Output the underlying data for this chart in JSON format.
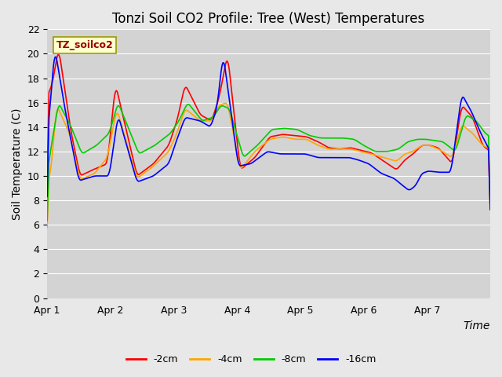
{
  "title": "Tonzi Soil CO2 Profile: Tree (West) Temperatures",
  "xlabel": "Time",
  "ylabel": "Soil Temperature (C)",
  "legend_label": "TZ_soilco2",
  "ylim": [
    0,
    22
  ],
  "yticks": [
    0,
    2,
    4,
    6,
    8,
    10,
    12,
    14,
    16,
    18,
    20,
    22
  ],
  "x_tick_positions": [
    0,
    1,
    2,
    3,
    4,
    5,
    6
  ],
  "x_labels": [
    "Apr 1",
    "Apr 2",
    "Apr 3",
    "Apr 4",
    "Apr 5",
    "Apr 6",
    "Apr 7"
  ],
  "series_labels": [
    "-2cm",
    "-4cm",
    "-8cm",
    "-16cm"
  ],
  "series_colors": [
    "#ff0000",
    "#ffa500",
    "#00cc00",
    "#0000ff"
  ],
  "fig_bg": "#e8e8e8",
  "plot_bg": "#d3d3d3",
  "title_fontsize": 12,
  "axis_fontsize": 10,
  "tick_fontsize": 9,
  "legend_box_color": "#ffffcc",
  "legend_box_edge": "#999900",
  "legend_text_color": "#990000"
}
